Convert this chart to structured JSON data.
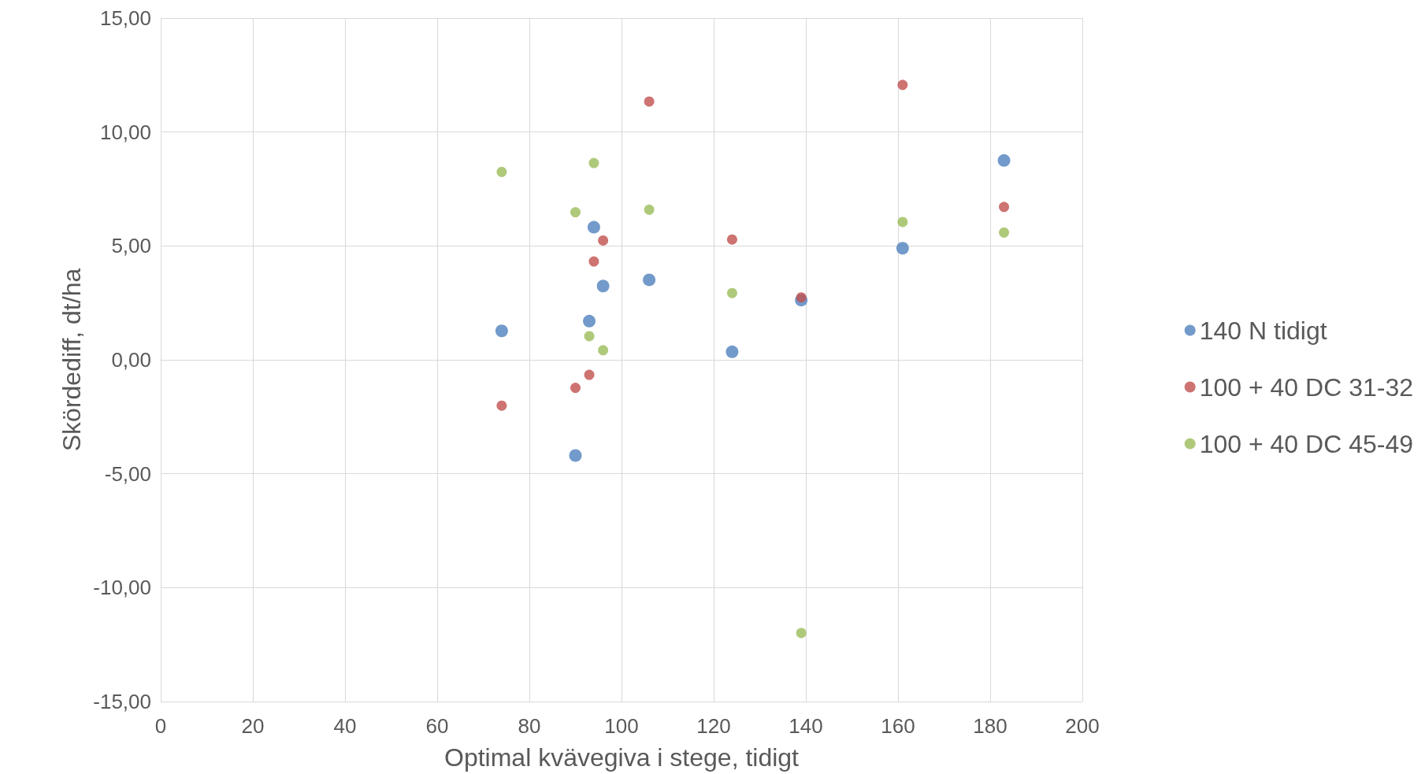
{
  "chart_data": {
    "type": "scatter",
    "xlabel": "Optimal kvävegiva i stege, tidigt",
    "ylabel": "Skördediff, dt/ha",
    "x": [
      74,
      90,
      93,
      94,
      96,
      106,
      124,
      139,
      161,
      183
    ],
    "series": [
      {
        "name": "140 N tidigt",
        "color": "#4f81bd",
        "values": [
          1.27,
          -4.2,
          1.7,
          5.82,
          3.24,
          3.51,
          0.35,
          2.62,
          4.9,
          8.75
        ]
      },
      {
        "name": "100 + 40 DC 31-32",
        "color": "#c0504d",
        "values": [
          -2.01,
          -1.23,
          -0.66,
          4.32,
          5.24,
          11.34,
          5.28,
          2.74,
          12.07,
          6.71
        ]
      },
      {
        "name": "100 + 40 DC 45-49",
        "color": "#9bbb59",
        "values": [
          8.25,
          6.48,
          1.04,
          8.64,
          0.42,
          6.59,
          2.93,
          -11.99,
          6.05,
          5.59
        ]
      }
    ],
    "xlim": [
      0,
      200
    ],
    "xticks": [
      0,
      20,
      40,
      60,
      80,
      100,
      120,
      140,
      160,
      180,
      200
    ],
    "ylim": [
      -15,
      15
    ],
    "yticks": [
      {
        "value": -15,
        "label": "-15,00"
      },
      {
        "value": -10,
        "label": "-10,00"
      },
      {
        "value": -5,
        "label": "-5,00"
      },
      {
        "value": 0,
        "label": "0,00"
      },
      {
        "value": 5,
        "label": "5,00"
      },
      {
        "value": 10,
        "label": "10,00"
      },
      {
        "value": 15,
        "label": "15,00"
      }
    ],
    "grid": true,
    "legend": "right",
    "marker": "circle"
  }
}
